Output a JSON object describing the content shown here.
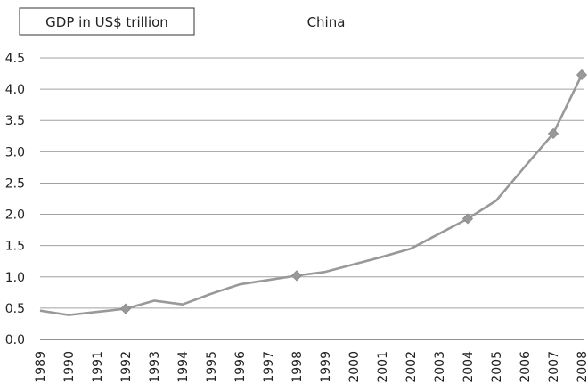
{
  "chart_data": {
    "type": "line",
    "title": "China",
    "ylabel": "GDP in US$ trillion",
    "xlabel": "",
    "x": [
      "1989",
      "1990",
      "1991",
      "1992",
      "1993",
      "1994",
      "1995",
      "1996",
      "1997",
      "1998",
      "1999",
      "2000",
      "2001",
      "2002",
      "2003",
      "2004",
      "2005",
      "2006",
      "2007",
      "2008"
    ],
    "series": [
      {
        "values": [
          0.46,
          0.39,
          0.44,
          0.49,
          0.62,
          0.56,
          0.73,
          0.88,
          0.95,
          1.02,
          1.08,
          1.2,
          1.32,
          1.45,
          1.69,
          1.93,
          2.22,
          2.76,
          3.29,
          4.23
        ],
        "color": "#999999"
      }
    ],
    "markers_at": [
      "1992",
      "1998",
      "2004",
      "2007",
      "2008"
    ],
    "ylim": [
      0,
      4.5
    ],
    "yticks": [
      "0.0",
      "0.5",
      "1.0",
      "1.5",
      "2.0",
      "2.5",
      "3.0",
      "3.5",
      "4.0",
      "4.5"
    ],
    "grid": true
  }
}
